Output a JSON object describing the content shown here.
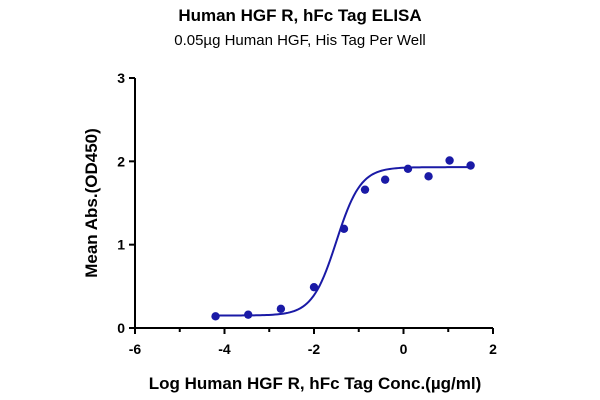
{
  "chart_data": {
    "type": "scatter",
    "title": "Human HGF R, hFc Tag ELISA",
    "subtitle": "0.05µg Human HGF, His Tag Per Well",
    "xlabel": "Log Human HGF R, hFc Tag Conc.(µg/ml)",
    "ylabel": "Mean Abs.(OD450)",
    "xlim": [
      -6,
      2
    ],
    "ylim": [
      0,
      3
    ],
    "xticks": [
      "-6",
      "-4",
      "-2",
      "0",
      "2"
    ],
    "yticks": [
      "0",
      "1",
      "2",
      "3"
    ],
    "grid": false,
    "points": {
      "x": [
        -4.2,
        -3.47,
        -2.74,
        -2.0,
        -1.33,
        -0.86,
        -0.41,
        0.1,
        0.56,
        1.03,
        1.5
      ],
      "y": [
        0.14,
        0.16,
        0.23,
        0.49,
        1.19,
        1.66,
        1.78,
        1.91,
        1.82,
        2.01,
        1.95
      ]
    },
    "fit_curve": {
      "bottom": 0.15,
      "top": 1.93,
      "ec50_log": -1.5,
      "hill": 1.6
    },
    "colors": {
      "series": "#1a1aa6",
      "axis": "#000000"
    }
  }
}
